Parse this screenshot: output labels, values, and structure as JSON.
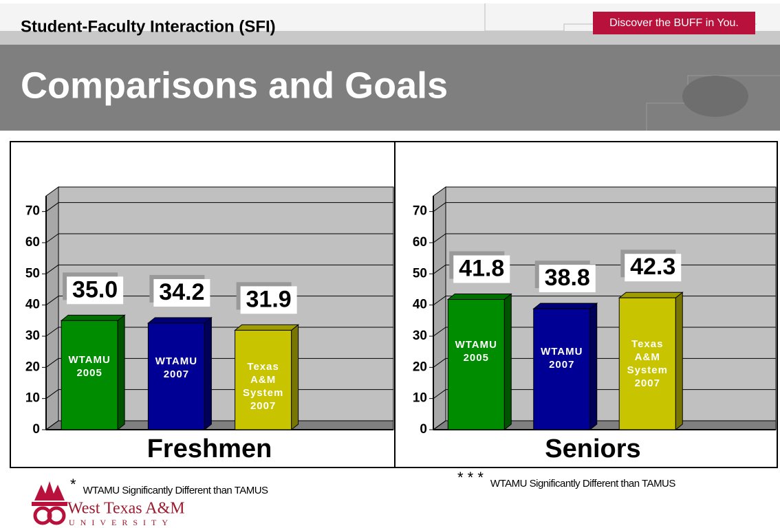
{
  "header": {
    "subtitle": "Student-Faculty Interaction (SFI)",
    "title": "Comparisons and Goals",
    "tagline": "Discover the BUFF in You."
  },
  "chart_data": [
    {
      "type": "bar",
      "xlabel": "Freshmen",
      "categories": [
        "WTAMU 2005",
        "WTAMU 2007",
        "Texas A&M System 2007"
      ],
      "values": [
        35.0,
        34.2,
        31.9
      ],
      "value_labels": [
        "35.0",
        "34.2",
        "31.9"
      ],
      "colors": [
        "#008c00",
        "#000094",
        "#c8c400"
      ],
      "ylim": [
        0,
        75
      ],
      "yticks": [
        0,
        10,
        20,
        30,
        40,
        50,
        60,
        70
      ],
      "grid": true,
      "footnote_mark": "*",
      "footnote": "WTAMU Significantly Different than TAMUS"
    },
    {
      "type": "bar",
      "xlabel": "Seniors",
      "categories": [
        "WTAMU 2005",
        "WTAMU 2007",
        "Texas A&M System 2007"
      ],
      "values": [
        41.8,
        38.8,
        42.3
      ],
      "value_labels": [
        "41.8",
        "38.8",
        "42.3"
      ],
      "colors": [
        "#008c00",
        "#000094",
        "#c8c400"
      ],
      "ylim": [
        0,
        75
      ],
      "yticks": [
        0,
        10,
        20,
        30,
        40,
        50,
        60,
        70
      ],
      "grid": true,
      "footnote_mark": "* * *",
      "footnote": "WTAMU Significantly Different than TAMUS"
    }
  ],
  "logo": {
    "name": "West Texas A&M",
    "subname": "UNIVERSITY"
  }
}
